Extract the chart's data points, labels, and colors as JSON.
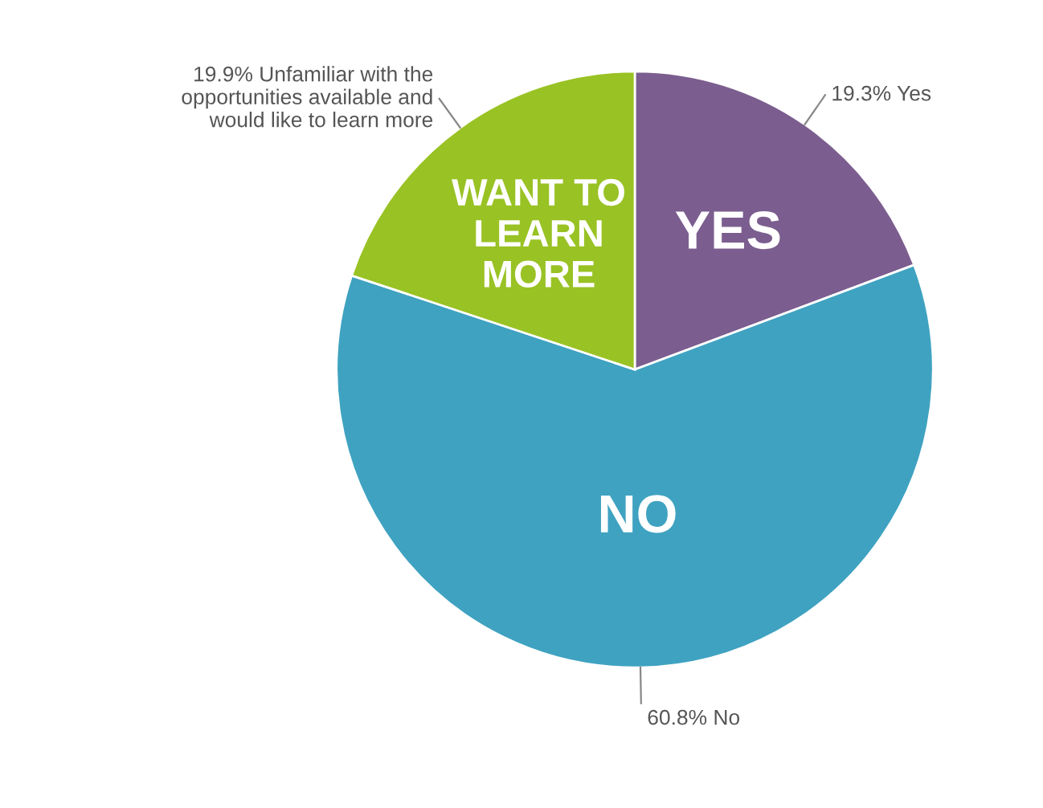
{
  "chart_data": {
    "type": "pie",
    "categories": [
      "YES",
      "NO",
      "WANT TO\nLEARN\nMORE"
    ],
    "values": [
      19.3,
      60.8,
      19.9
    ],
    "colors": [
      "#7b5e8f",
      "#3fa2c1",
      "#99c224"
    ],
    "value_labels": [
      "19.3% Yes",
      "60.8% No",
      "19.9% Unfamiliar with the\nopportunities available and\nwould like to learn more"
    ],
    "legend": false
  }
}
